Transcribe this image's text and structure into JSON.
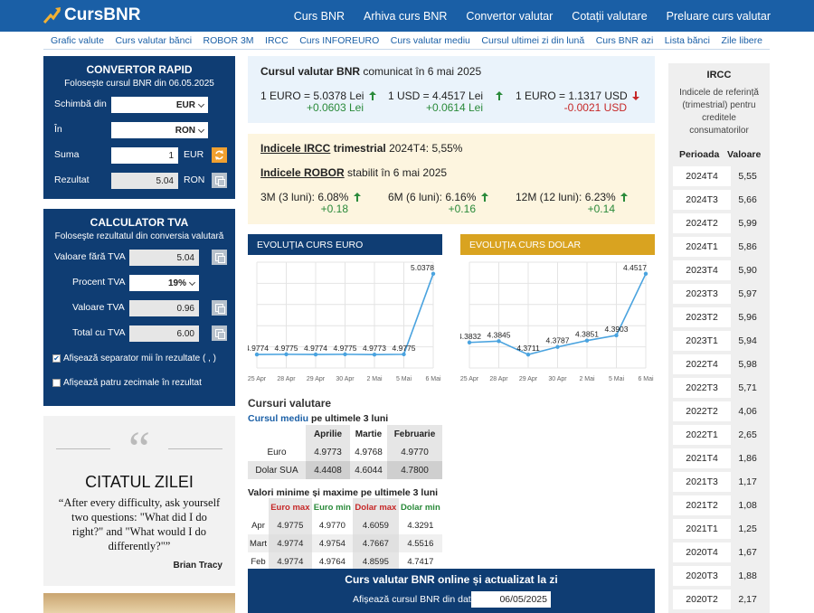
{
  "header": {
    "logo": "CursBNR",
    "nav": [
      "Curs BNR",
      "Arhiva curs BNR",
      "Convertor valutar",
      "Cotații valutare",
      "Preluare curs valutar"
    ]
  },
  "subnav": [
    "Grafic valute",
    "Curs valutar bănci",
    "ROBOR 3M",
    "IRCC",
    "Curs INFOREURO",
    "Curs valutar mediu",
    "Cursul ultimei zi din lună",
    "Curs BNR azi",
    "Lista bănci",
    "Zile libere"
  ],
  "convertor": {
    "title": "CONVERTOR RAPID",
    "subtitle": "Folosește cursul BNR din 06.05.2025",
    "from_label": "Schimbă din",
    "from_value": "EUR",
    "to_label": "În",
    "to_value": "RON",
    "amount_label": "Suma",
    "amount_value": "1",
    "amount_unit": "EUR",
    "result_label": "Rezultat",
    "result_value": "5.04",
    "result_unit": "RON"
  },
  "tva": {
    "title": "CALCULATOR TVA",
    "subtitle": "Foloseşte rezultatul din conversia valutară",
    "net_label": "Valoare fără TVA",
    "net_value": "5.04",
    "pct_label": "Procent TVA",
    "pct_value": "19%",
    "vat_label": "Valoare TVA",
    "vat_value": "0.96",
    "total_label": "Total cu TVA",
    "total_value": "6.00",
    "chk1": "Afișează separator mii în rezultate ( , )",
    "chk2": "Afișează patru zecimale în rezultat"
  },
  "quote": {
    "title": "CITATUL ZILEI",
    "text": "“After every difficulty, ask yourself two questions: \"What did I do right?\" and \"What would I do differently?\"”",
    "author": "Brian Tracy"
  },
  "bnr": {
    "heading_bold": "Cursul valutar BNR",
    "heading_rest": "comunicat în 6 mai 2025",
    "rates": [
      {
        "label": "1 EURO = 5.0378 Lei",
        "delta": "+0.0603 Lei",
        "dir": "up"
      },
      {
        "label": "1 USD = 4.4517 Lei",
        "delta": "+0.0614 Lei",
        "dir": "up"
      },
      {
        "label": "1 EURO = 1.1317 USD",
        "delta": "-0.0021 USD",
        "dir": "down"
      }
    ]
  },
  "indices": {
    "ircc_bold": "Indicele IRCC",
    "ircc_mid": "trimestrial",
    "ircc_rest": "2024T4: 5,55%",
    "robor_bold": "Indicele ROBOR",
    "robor_rest": "stabilit în 6 mai 2025",
    "robor": [
      {
        "label": "3M (3 luni): 6.08%",
        "delta": "+0.18"
      },
      {
        "label": "6M (6 luni): 6.16%",
        "delta": "+0.16"
      },
      {
        "label": "12M (12 luni): 6.23%",
        "delta": "+0.14"
      }
    ]
  },
  "colors": {
    "primary": "#1a5fa6",
    "dark": "#0f3d73",
    "gold": "#d9a320",
    "up": "#2a8a3a",
    "down": "#c62828",
    "line": "#4aa3df"
  },
  "chart_data": [
    {
      "type": "line",
      "title": "EVOLUȚIA CURS EURO",
      "categories": [
        "25 Apr",
        "28 Apr",
        "29 Apr",
        "30 Apr",
        "2 Mai",
        "5 Mai",
        "6 Mai"
      ],
      "values": [
        4.9774,
        4.9775,
        4.9774,
        4.9775,
        4.9773,
        4.9775,
        5.0378
      ],
      "point_labels": [
        "4.9774",
        "4.9775",
        "4.9774",
        "4.9775",
        "4.9773",
        "4.9775",
        "5.0378"
      ],
      "grid": true
    },
    {
      "type": "line",
      "title": "EVOLUȚIA CURS DOLAR",
      "categories": [
        "25 Apr",
        "28 Apr",
        "29 Apr",
        "30 Apr",
        "2 Mai",
        "5 Mai",
        "6 Mai"
      ],
      "values": [
        4.3832,
        4.3845,
        4.3711,
        4.3787,
        4.3851,
        4.3903,
        4.4517
      ],
      "point_labels": [
        "4.3832",
        "4.3845",
        "4.3711",
        "4.3787",
        "4.3851",
        "4.3903",
        "4.4517"
      ],
      "grid": true
    }
  ],
  "cursuri": {
    "title": "Cursuri valutare",
    "sub_link": "Cursul mediu",
    "sub_rest": "pe ultimele 3 luni",
    "months": [
      "Aprilie",
      "Martie",
      "Februarie"
    ],
    "rows": [
      {
        "name": "Euro",
        "vals": [
          "4.9773",
          "4.9768",
          "4.9770"
        ]
      },
      {
        "name": "Dolar SUA",
        "vals": [
          "4.4408",
          "4.6044",
          "4.7800"
        ]
      }
    ]
  },
  "minmax": {
    "title": "Valori minime și maxime pe ultimele 3 luni",
    "cols": [
      "Euro max",
      "Euro min",
      "Dolar max",
      "Dolar min"
    ],
    "rows": [
      {
        "m": "Apr",
        "v": [
          "4.9775",
          "4.9770",
          "4.6059",
          "4.3291"
        ]
      },
      {
        "m": "Mart",
        "v": [
          "4.9774",
          "4.9754",
          "4.7667",
          "4.5516"
        ]
      },
      {
        "m": "Feb",
        "v": [
          "4.9774",
          "4.9764",
          "4.8595",
          "4.7417"
        ]
      }
    ]
  },
  "online": {
    "title": "Curs valutar BNR online și actualizat la zi",
    "date_label": "Afișează cursul BNR din data",
    "date_value": "06/05/2025"
  },
  "ircc": {
    "title": "IRCC",
    "desc": "Indicele de referință (trimestrial) pentru creditele consumatorilor",
    "col_period": "Perioada",
    "col_value": "Valoare",
    "rows": [
      [
        "2024T4",
        "5,55"
      ],
      [
        "2024T3",
        "5,66"
      ],
      [
        "2024T2",
        "5,99"
      ],
      [
        "2024T1",
        "5,86"
      ],
      [
        "2023T4",
        "5,90"
      ],
      [
        "2023T3",
        "5,97"
      ],
      [
        "2023T2",
        "5,96"
      ],
      [
        "2023T1",
        "5,94"
      ],
      [
        "2022T4",
        "5,98"
      ],
      [
        "2022T3",
        "5,71"
      ],
      [
        "2022T2",
        "4,06"
      ],
      [
        "2022T1",
        "2,65"
      ],
      [
        "2021T4",
        "1,86"
      ],
      [
        "2021T3",
        "1,17"
      ],
      [
        "2021T2",
        "1,08"
      ],
      [
        "2021T1",
        "1,25"
      ],
      [
        "2020T4",
        "1,67"
      ],
      [
        "2020T3",
        "1,88"
      ],
      [
        "2020T2",
        "2,17"
      ]
    ]
  }
}
